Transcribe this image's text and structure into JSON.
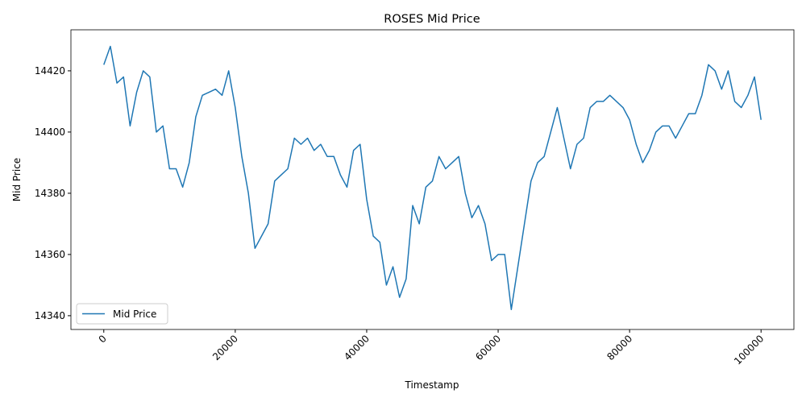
{
  "chart_data": {
    "type": "line",
    "title": "ROSES Mid Price",
    "x_label": "Timestamp",
    "y_label": "Mid Price",
    "x": [
      0,
      1000,
      2000,
      3000,
      4000,
      5000,
      6000,
      7000,
      8000,
      9000,
      10000,
      11000,
      12000,
      13000,
      14000,
      15000,
      16000,
      17000,
      18000,
      19000,
      20000,
      21000,
      22000,
      23000,
      24000,
      25000,
      26000,
      27000,
      28000,
      29000,
      30000,
      31000,
      32000,
      33000,
      34000,
      35000,
      36000,
      37000,
      38000,
      39000,
      40000,
      41000,
      42000,
      43000,
      44000,
      45000,
      46000,
      47000,
      48000,
      49000,
      50000,
      51000,
      52000,
      53000,
      54000,
      55000,
      56000,
      57000,
      58000,
      59000,
      60000,
      61000,
      62000,
      63000,
      64000,
      65000,
      66000,
      67000,
      68000,
      69000,
      70000,
      71000,
      72000,
      73000,
      74000,
      75000,
      76000,
      77000,
      78000,
      79000,
      80000,
      81000,
      82000,
      83000,
      84000,
      85000,
      86000,
      87000,
      88000,
      89000,
      90000,
      91000,
      92000,
      93000,
      94000,
      95000,
      96000,
      97000,
      98000,
      99000,
      100000
    ],
    "series": [
      {
        "name": "Mid Price",
        "color": "#1f77b4",
        "values": [
          14422,
          14428,
          14416,
          14418,
          14402,
          14413,
          14420,
          14418,
          14400,
          14402,
          14388,
          14388,
          14382,
          14390,
          14405,
          14412,
          14413,
          14414,
          14412,
          14420,
          14408,
          14392,
          14380,
          14362,
          14366,
          14370,
          14384,
          14386,
          14388,
          14398,
          14396,
          14398,
          14394,
          14396,
          14392,
          14392,
          14386,
          14382,
          14394,
          14396,
          14378,
          14366,
          14364,
          14350,
          14356,
          14346,
          14352,
          14376,
          14370,
          14382,
          14384,
          14392,
          14388,
          14390,
          14392,
          14380,
          14372,
          14376,
          14370,
          14358,
          14360,
          14360,
          14342,
          14356,
          14370,
          14384,
          14390,
          14392,
          14400,
          14408,
          14398,
          14388,
          14396,
          14398,
          14408,
          14410,
          14410,
          14412,
          14410,
          14408,
          14404,
          14396,
          14390,
          14394,
          14400,
          14402,
          14402,
          14398,
          14402,
          14406,
          14406,
          14412,
          14422,
          14420,
          14414,
          14420,
          14410,
          14408,
          14412,
          14418,
          14404
        ]
      }
    ],
    "xlim": [
      -5000,
      105000
    ],
    "ylim": [
      14335.5,
      14433.4
    ],
    "xticks": [
      0,
      20000,
      40000,
      60000,
      80000,
      100000
    ],
    "yticks": [
      14340,
      14360,
      14380,
      14400,
      14420
    ],
    "legend": "lower left",
    "grid": false
  }
}
